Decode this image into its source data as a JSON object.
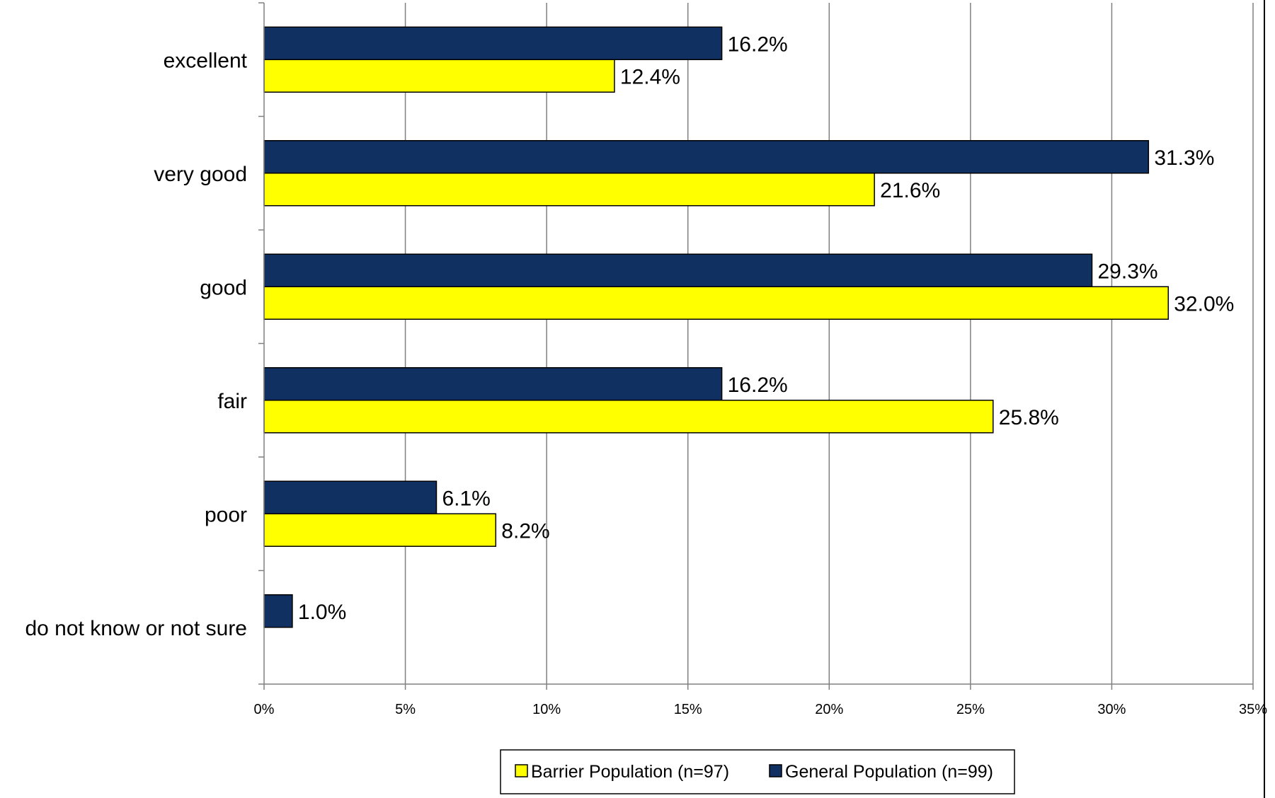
{
  "chart_data": {
    "type": "bar",
    "orientation": "horizontal",
    "categories": [
      "excellent",
      "very good",
      "good",
      "fair",
      "poor",
      "do not know or not sure"
    ],
    "series": [
      {
        "name": "General Population (n=99)",
        "color": "#0f3060",
        "values": [
          16.2,
          31.3,
          29.3,
          16.2,
          6.1,
          1.0
        ],
        "labels": [
          "16.2%",
          "31.3%",
          "29.3%",
          "16.2%",
          "6.1%",
          "1.0%"
        ]
      },
      {
        "name": "Barrier Population (n=97)",
        "color": "#ffff00",
        "values": [
          12.4,
          21.6,
          32.0,
          25.8,
          8.2,
          null
        ],
        "labels": [
          "12.4%",
          "21.6%",
          "32.0%",
          "25.8%",
          "8.2%",
          ""
        ]
      }
    ],
    "xlim": [
      0,
      35
    ],
    "xticks": [
      "0%",
      "5%",
      "10%",
      "15%",
      "20%",
      "25%",
      "30%",
      "35%"
    ],
    "grid": "vertical",
    "legend": {
      "placement": "bottom",
      "entries": [
        "Barrier Population (n=97)",
        "General Population (n=99)"
      ]
    }
  }
}
